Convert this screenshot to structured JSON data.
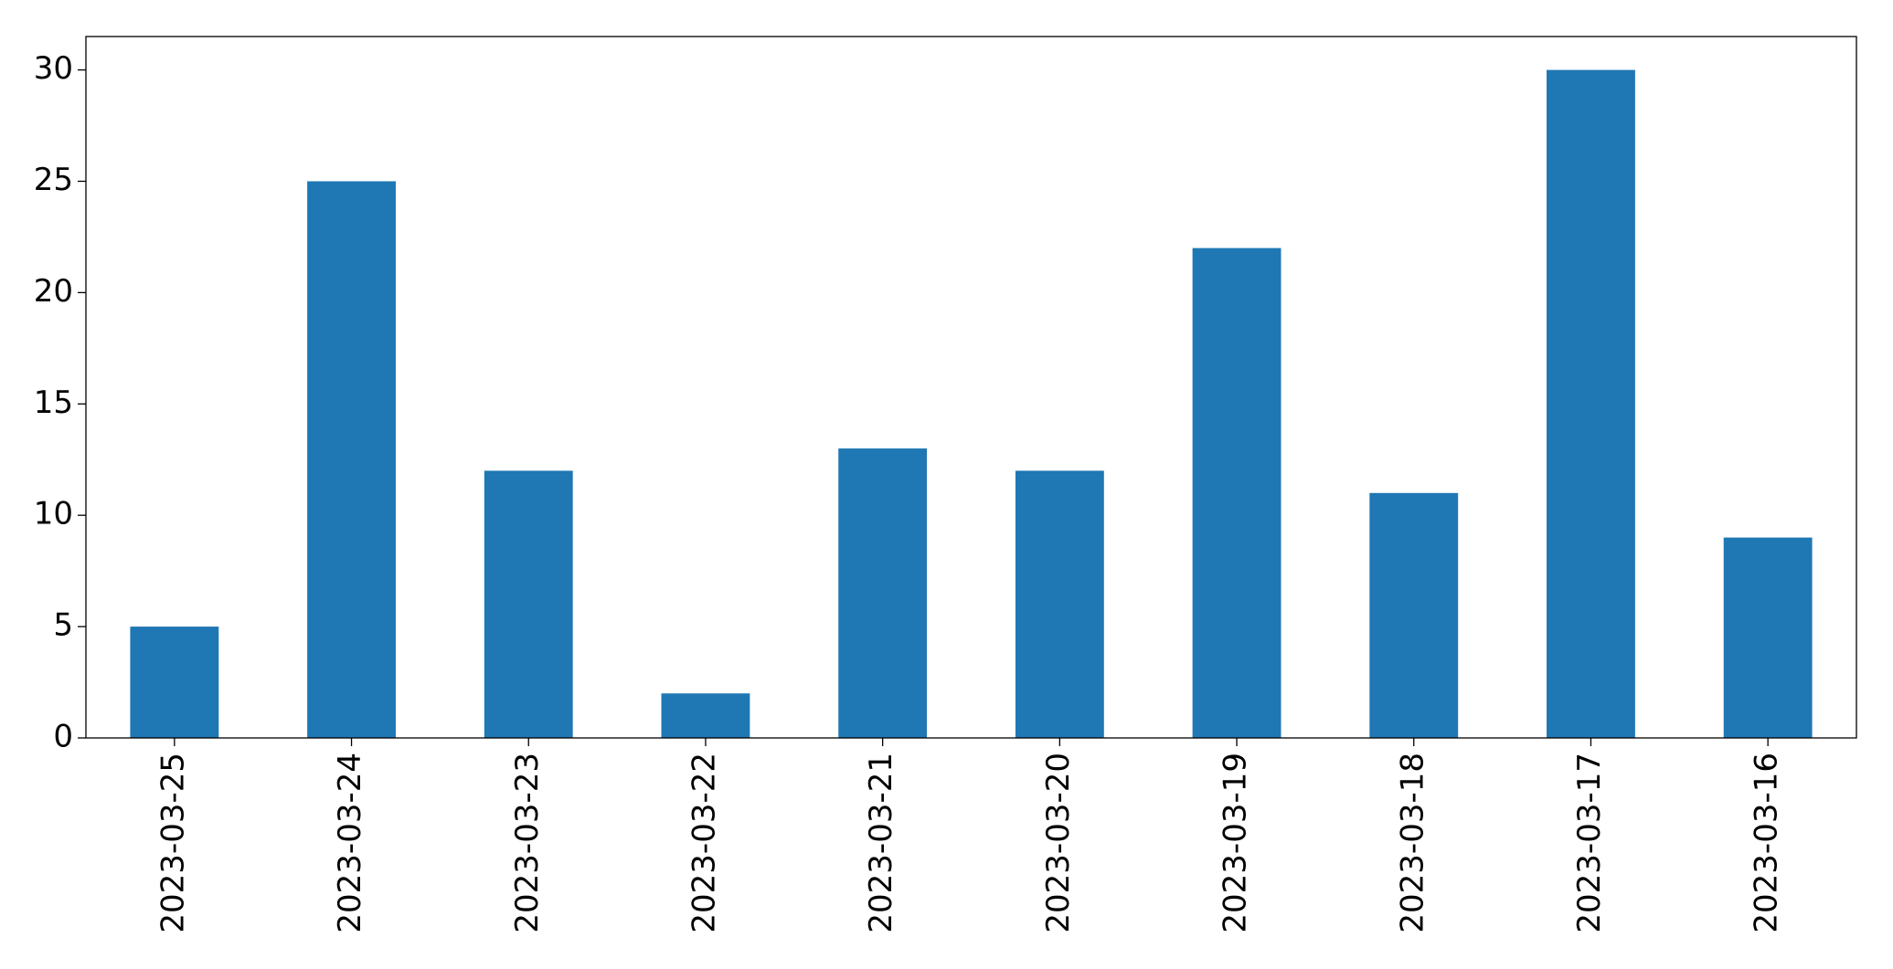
{
  "chart_data": {
    "type": "bar",
    "categories": [
      "2023-03-25",
      "2023-03-24",
      "2023-03-23",
      "2023-03-22",
      "2023-03-21",
      "2023-03-20",
      "2023-03-19",
      "2023-03-18",
      "2023-03-17",
      "2023-03-16"
    ],
    "values": [
      5,
      25,
      12,
      2,
      13,
      12,
      22,
      11,
      30,
      9
    ],
    "color": "#1f77b4",
    "ylim": [
      0,
      31.5
    ],
    "yticks": [
      0,
      5,
      10,
      15,
      20,
      25,
      30
    ],
    "grid": false
  }
}
